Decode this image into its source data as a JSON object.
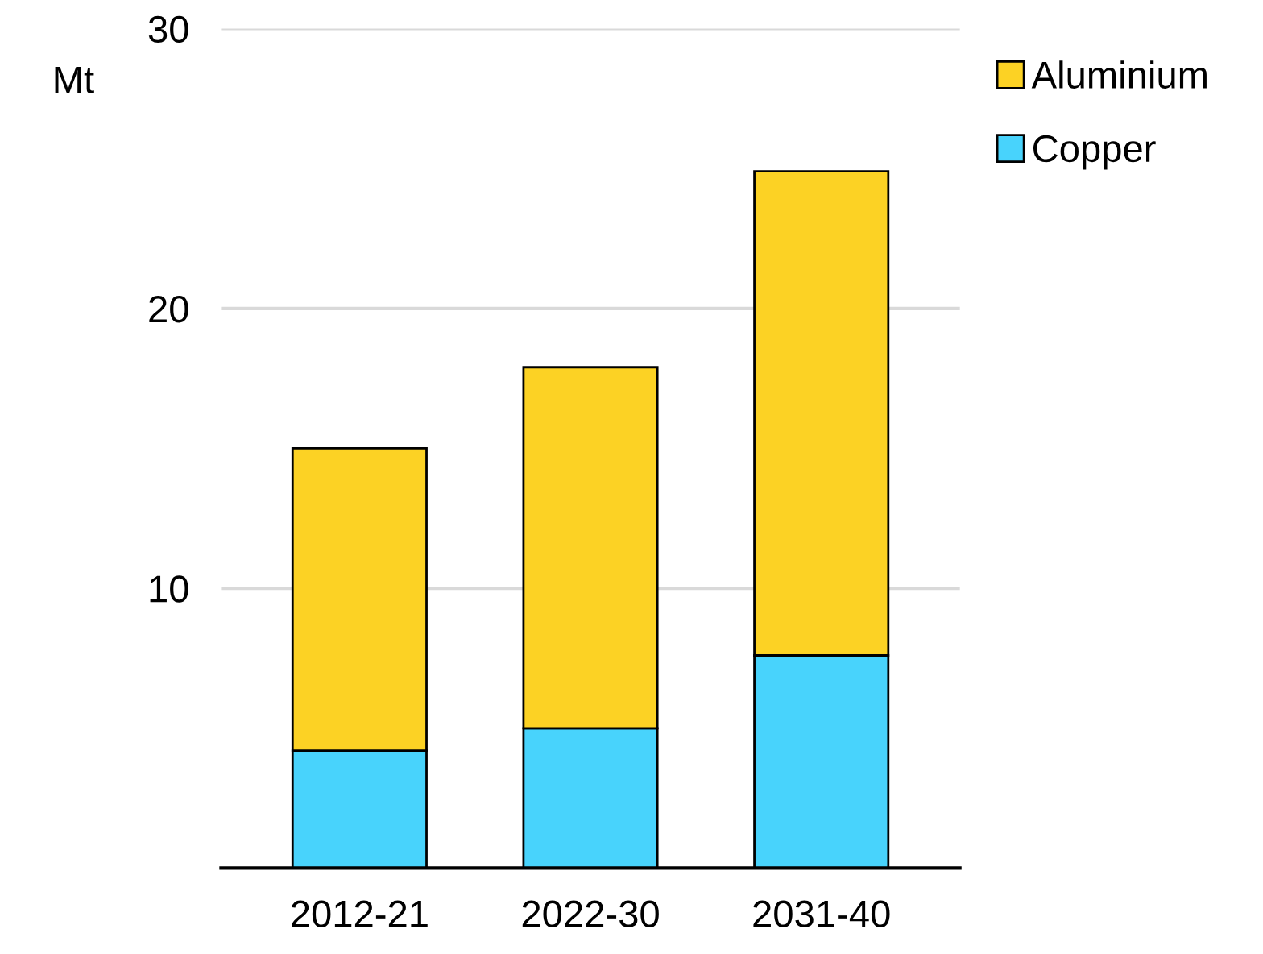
{
  "chart_data": {
    "type": "bar",
    "stacked": true,
    "ylabel": "Mt",
    "categories": [
      "2012-21",
      "2022-30",
      "2031-40"
    ],
    "series": [
      {
        "name": "Copper",
        "color": "#48d3fc",
        "values": [
          4.2,
          5.0,
          7.6
        ]
      },
      {
        "name": "Aluminium",
        "color": "#fcd224",
        "values": [
          10.8,
          12.9,
          17.3
        ]
      }
    ],
    "ylim": [
      0,
      30
    ],
    "yticks": [
      10,
      20,
      30
    ],
    "grid": "y",
    "legend": "top right"
  }
}
